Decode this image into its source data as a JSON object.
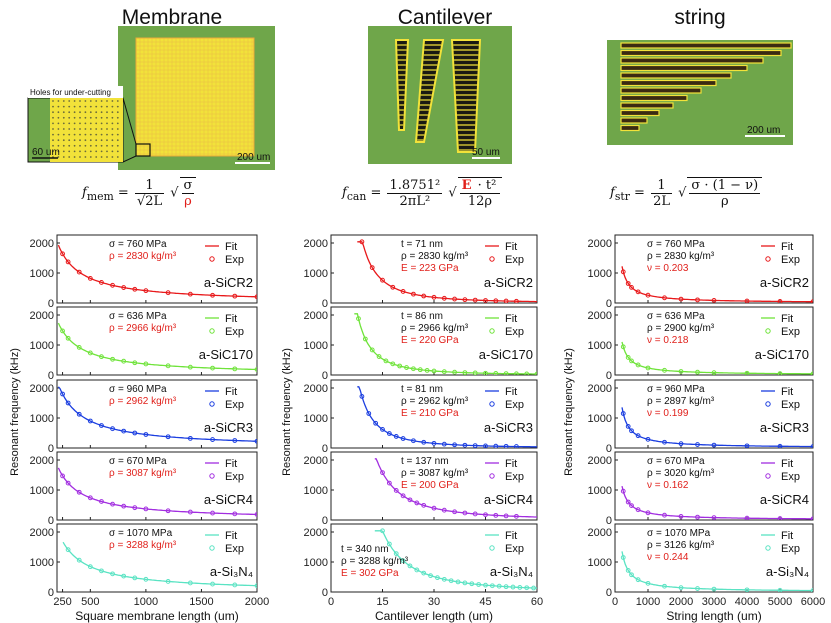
{
  "column_titles": [
    "Membrane",
    "Cantilever",
    "string"
  ],
  "micrographs": {
    "membrane_inset_caption": "Holes for under-cutting",
    "membrane_inset_scale": "60 um",
    "membrane_scale": "200 um",
    "cantilever_scale": "50 um",
    "string_scale": "200 um",
    "substrate_color": "#6fa64a",
    "metal_color": "#f2e23a"
  },
  "formulas": {
    "membrane": {
      "lhs": "f",
      "sub": "mem",
      "num": "1",
      "den": "√2L",
      "root_num": "σ",
      "root_den": "ρ"
    },
    "cantilever": {
      "lhs": "f",
      "sub": "can",
      "num": "1.8751²",
      "den": "2πL²",
      "root_num_red": "E",
      "root_num_rest": "· t²",
      "root_den": "12ρ"
    },
    "string": {
      "lhs": "f",
      "sub": "str",
      "num": "1",
      "den": "2L",
      "root_num": "σ · (1 − ν)",
      "root_den": "ρ"
    }
  },
  "chart_data": [
    {
      "type": "line",
      "panel": "membrane",
      "material": "a-SiCR2",
      "color": "#e8191b",
      "legend": [
        "Fit",
        "Exp"
      ],
      "params": [
        "σ = 760 MPa",
        "ρ = 2830 kg/m³"
      ],
      "red_params": [
        1
      ],
      "xlim": [
        200,
        2000
      ],
      "ylim": [
        0,
        2000
      ],
      "yticks": [
        0,
        1000,
        2000
      ],
      "x": [
        250,
        300,
        400,
        500,
        600,
        700,
        800,
        900,
        1000,
        1200,
        1400,
        1600,
        1800,
        2000
      ],
      "y": [
        1640,
        1370,
        1030,
        820,
        685,
        590,
        515,
        458,
        412,
        343,
        295,
        258,
        229,
        206
      ]
    },
    {
      "type": "line",
      "panel": "membrane",
      "material": "a-SiC170",
      "color": "#6fe33a",
      "legend": [
        "Fit",
        "Exp"
      ],
      "params": [
        "σ = 636 MPa",
        "ρ = 2966 kg/m³"
      ],
      "red_params": [
        1
      ],
      "xlim": [
        200,
        2000
      ],
      "ylim": [
        0,
        2000
      ],
      "yticks": [
        0,
        1000,
        2000
      ],
      "x": [
        250,
        300,
        400,
        500,
        600,
        700,
        800,
        900,
        1000,
        1200,
        1400,
        1600,
        1800,
        2000
      ],
      "y": [
        1470,
        1225,
        920,
        735,
        612,
        525,
        460,
        408,
        368,
        306,
        262,
        230,
        204,
        184
      ]
    },
    {
      "type": "line",
      "panel": "membrane",
      "material": "a-SiCR3",
      "color": "#1b3ee0",
      "legend": [
        "Fit",
        "Exp"
      ],
      "params": [
        "σ = 960 MPa",
        "ρ = 2962 kg/m³"
      ],
      "red_params": [
        1
      ],
      "xlim": [
        200,
        2000
      ],
      "ylim": [
        0,
        2000
      ],
      "yticks": [
        0,
        1000,
        2000
      ],
      "x": [
        250,
        300,
        400,
        500,
        600,
        700,
        800,
        900,
        1000,
        1200,
        1400,
        1600,
        1800,
        2000
      ],
      "y": [
        1800,
        1500,
        1125,
        900,
        750,
        643,
        563,
        500,
        450,
        375,
        321,
        281,
        250,
        225
      ]
    },
    {
      "type": "line",
      "panel": "membrane",
      "material": "a-SiCR4",
      "color": "#a22ee0",
      "legend": [
        "Fit",
        "Exp"
      ],
      "params": [
        "σ = 670 MPa",
        "ρ = 3087 kg/m³"
      ],
      "red_params": [
        1
      ],
      "xlim": [
        200,
        2000
      ],
      "ylim": [
        0,
        2000
      ],
      "yticks": [
        0,
        1000,
        2000
      ],
      "x": [
        250,
        300,
        400,
        500,
        600,
        700,
        800,
        900,
        1000,
        1200,
        1400,
        1600,
        1800,
        2000
      ],
      "y": [
        1470,
        1230,
        925,
        740,
        617,
        528,
        462,
        411,
        370,
        308,
        264,
        231,
        205,
        185
      ]
    },
    {
      "type": "line",
      "panel": "membrane",
      "material": "a-Si₃N₄",
      "color": "#5ae3c3",
      "legend": [
        "Fit",
        "Exp"
      ],
      "params": [
        "σ = 1070 MPa",
        "ρ = 3288 kg/m³"
      ],
      "red_params": [
        1
      ],
      "xlim": [
        200,
        2000
      ],
      "ylim": [
        0,
        2000
      ],
      "yticks": [
        0,
        1000,
        2000
      ],
      "xticks": [
        250,
        500,
        1000,
        1500,
        2000
      ],
      "xlabel": "Square membrane length (um)",
      "x": [
        300,
        400,
        500,
        600,
        700,
        800,
        900,
        1000,
        1200,
        1400,
        1600,
        1800,
        2000
      ],
      "y": [
        1410,
        1060,
        845,
        705,
        605,
        530,
        470,
        423,
        352,
        302,
        264,
        235,
        211
      ]
    },
    {
      "type": "line",
      "panel": "cantilever",
      "material": "a-SiCR2",
      "color": "#e8191b",
      "legend": [
        "Fit",
        "Exp"
      ],
      "params": [
        "t = 71 nm",
        "ρ = 2830 kg/m³",
        "E = 223 GPa"
      ],
      "red_params": [
        2
      ],
      "xlim": [
        0,
        60
      ],
      "ylim": [
        0,
        2000
      ],
      "yticks": [
        0,
        1000,
        2000
      ],
      "x": [
        9,
        12,
        15,
        18,
        21,
        24,
        27,
        30,
        33,
        36,
        39,
        42,
        45,
        48,
        51,
        54
      ],
      "y": [
        2100,
        1180,
        760,
        525,
        385,
        296,
        233,
        190,
        157,
        132,
        112,
        97,
        84,
        74,
        65,
        58
      ]
    },
    {
      "type": "line",
      "panel": "cantilever",
      "material": "a-SiC170",
      "color": "#6fe33a",
      "legend": [
        "Fit",
        "Exp"
      ],
      "params": [
        "t = 86 nm",
        "ρ = 2966 kg/m³",
        "E = 220 GPa"
      ],
      "red_params": [
        2
      ],
      "xlim": [
        0,
        60
      ],
      "ylim": [
        0,
        2000
      ],
      "yticks": [
        0,
        1000,
        2000
      ],
      "x": [
        8,
        10,
        12,
        14,
        16,
        18,
        20,
        22,
        24,
        26,
        28,
        30,
        33,
        36,
        39,
        42,
        45,
        48,
        51,
        54,
        57,
        60
      ],
      "y": [
        1880,
        1200,
        835,
        615,
        470,
        372,
        300,
        248,
        209,
        178,
        153,
        133,
        110,
        93,
        79,
        68,
        59,
        52,
        46,
        41,
        37,
        33
      ]
    },
    {
      "type": "line",
      "panel": "cantilever",
      "material": "a-SiCR3",
      "color": "#1b3ee0",
      "legend": [
        "Fit",
        "Exp"
      ],
      "params": [
        "t = 81 nm",
        "ρ = 2962 kg/m³",
        "E = 210 GPa"
      ],
      "red_params": [
        2
      ],
      "xlim": [
        0,
        60
      ],
      "ylim": [
        0,
        2000
      ],
      "yticks": [
        0,
        1000,
        2000
      ],
      "x": [
        9,
        11,
        13,
        15,
        17,
        19,
        21,
        24,
        27,
        30,
        33,
        36,
        39,
        42,
        45,
        48,
        51,
        54
      ],
      "y": [
        1720,
        1150,
        825,
        620,
        483,
        386,
        316,
        242,
        191,
        155,
        128,
        108,
        92,
        79,
        69,
        60,
        54,
        48
      ]
    },
    {
      "type": "line",
      "panel": "cantilever",
      "material": "a-SiCR4",
      "color": "#a22ee0",
      "legend": [
        "Fit",
        "Exp"
      ],
      "params": [
        "t = 137 nm",
        "ρ = 3087 kg/m³",
        "E = 200 GPa"
      ],
      "red_params": [
        2
      ],
      "xlim": [
        0,
        60
      ],
      "ylim": [
        0,
        2000
      ],
      "yticks": [
        0,
        1000,
        2000
      ],
      "x": [
        15,
        17,
        19,
        21,
        23,
        25,
        27,
        30,
        33,
        36,
        39,
        42,
        45,
        48,
        51,
        54
      ],
      "y": [
        1580,
        1230,
        985,
        806,
        672,
        569,
        488,
        395,
        327,
        274,
        234,
        202,
        176,
        154,
        137,
        122
      ]
    },
    {
      "type": "line",
      "panel": "cantilever",
      "material": "a-Si₃N₄",
      "color": "#5ae3c3",
      "legend": [
        "Fit",
        "Exp"
      ],
      "params": [
        "t = 340 nm",
        "ρ = 3288 kg/m³",
        "E = 302 GPa"
      ],
      "red_params": [
        2
      ],
      "xlim": [
        0,
        60
      ],
      "ylim": [
        0,
        2000
      ],
      "yticks": [
        0,
        1000,
        2000
      ],
      "xticks": [
        0,
        15,
        30,
        45,
        60
      ],
      "xlabel": "Cantilever length (um)",
      "x": [
        15,
        17,
        19,
        21,
        23,
        25,
        27,
        29,
        31,
        33,
        35,
        37,
        39,
        41,
        43,
        45,
        47,
        49,
        51,
        53,
        55,
        57,
        59
      ],
      "y": [
        2050,
        1600,
        1280,
        1045,
        870,
        735,
        630,
        545,
        478,
        422,
        376,
        337,
        303,
        275,
        250,
        228,
        209,
        193,
        178,
        165,
        153,
        142,
        133
      ]
    },
    {
      "type": "line",
      "panel": "string",
      "material": "a-SiCR2",
      "color": "#e8191b",
      "legend": [
        "Fit",
        "Exp"
      ],
      "params": [
        "σ = 760 MPa",
        "ρ = 2830 kg/m³",
        "ν = 0.203"
      ],
      "red_params": [
        2
      ],
      "xlim": [
        0,
        6000
      ],
      "ylim": [
        0,
        2000
      ],
      "yticks": [
        0,
        1000,
        2000
      ],
      "x": [
        250,
        400,
        500,
        700,
        1000,
        1500,
        2000,
        2500,
        3000,
        4000,
        5000,
        6000
      ],
      "y": [
        1040,
        650,
        520,
        372,
        260,
        173,
        130,
        104,
        87,
        65,
        52,
        43
      ]
    },
    {
      "type": "line",
      "panel": "string",
      "material": "a-SiC170",
      "color": "#6fe33a",
      "legend": [
        "Fit",
        "Exp"
      ],
      "params": [
        "σ = 636 MPa",
        "ρ = 2900 kg/m³",
        "ν = 0.218"
      ],
      "red_params": [
        2
      ],
      "xlim": [
        0,
        6000
      ],
      "ylim": [
        0,
        2000
      ],
      "yticks": [
        0,
        1000,
        2000
      ],
      "x": [
        250,
        400,
        500,
        700,
        1000,
        1500,
        2000,
        2500,
        3000,
        4000,
        5000,
        6000
      ],
      "y": [
        940,
        585,
        470,
        335,
        234,
        156,
        117,
        94,
        78,
        59,
        47,
        39
      ]
    },
    {
      "type": "line",
      "panel": "string",
      "material": "a-SiCR3",
      "color": "#1b3ee0",
      "legend": [
        "Fit",
        "Exp"
      ],
      "params": [
        "σ = 960 MPa",
        "ρ = 2897 kg/m³",
        "ν = 0.199"
      ],
      "red_params": [
        2
      ],
      "xlim": [
        0,
        6000
      ],
      "ylim": [
        0,
        2000
      ],
      "yticks": [
        0,
        1000,
        2000
      ],
      "x": [
        250,
        400,
        500,
        700,
        1000,
        1500,
        2000,
        2500,
        3000,
        4000,
        5000,
        6000
      ],
      "y": [
        1150,
        720,
        575,
        411,
        288,
        192,
        144,
        115,
        96,
        72,
        58,
        48
      ]
    },
    {
      "type": "line",
      "panel": "string",
      "material": "a-SiCR4",
      "color": "#a22ee0",
      "legend": [
        "Fit",
        "Exp"
      ],
      "params": [
        "σ = 670 MPa",
        "ρ = 3020 kg/m³",
        "ν = 0.162"
      ],
      "red_params": [
        2
      ],
      "xlim": [
        0,
        6000
      ],
      "ylim": [
        0,
        2000
      ],
      "yticks": [
        0,
        1000,
        2000
      ],
      "x": [
        250,
        400,
        500,
        700,
        1000,
        1500,
        2000,
        2500,
        3000,
        4000,
        5000,
        6000
      ],
      "y": [
        960,
        600,
        480,
        343,
        240,
        160,
        120,
        96,
        80,
        60,
        48,
        40
      ]
    },
    {
      "type": "line",
      "panel": "string",
      "material": "a-Si₃N₄",
      "color": "#5ae3c3",
      "legend": [
        "Fit",
        "Exp"
      ],
      "params": [
        "σ = 1070 MPa",
        "ρ = 3126 kg/m³",
        "ν = 0.244"
      ],
      "red_params": [
        2
      ],
      "xlim": [
        0,
        6000
      ],
      "ylim": [
        0,
        2000
      ],
      "yticks": [
        0,
        1000,
        2000
      ],
      "xticks": [
        0,
        1000,
        2000,
        3000,
        4000,
        5000,
        6000
      ],
      "xlabel": "String length (um)",
      "x": [
        250,
        400,
        500,
        700,
        1000,
        1500,
        2000,
        2500,
        3000,
        4000,
        5000,
        6000
      ],
      "y": [
        1150,
        720,
        575,
        411,
        288,
        192,
        144,
        115,
        96,
        72,
        58,
        48
      ]
    }
  ],
  "ylabel": "Resonant frequency (kHz)"
}
